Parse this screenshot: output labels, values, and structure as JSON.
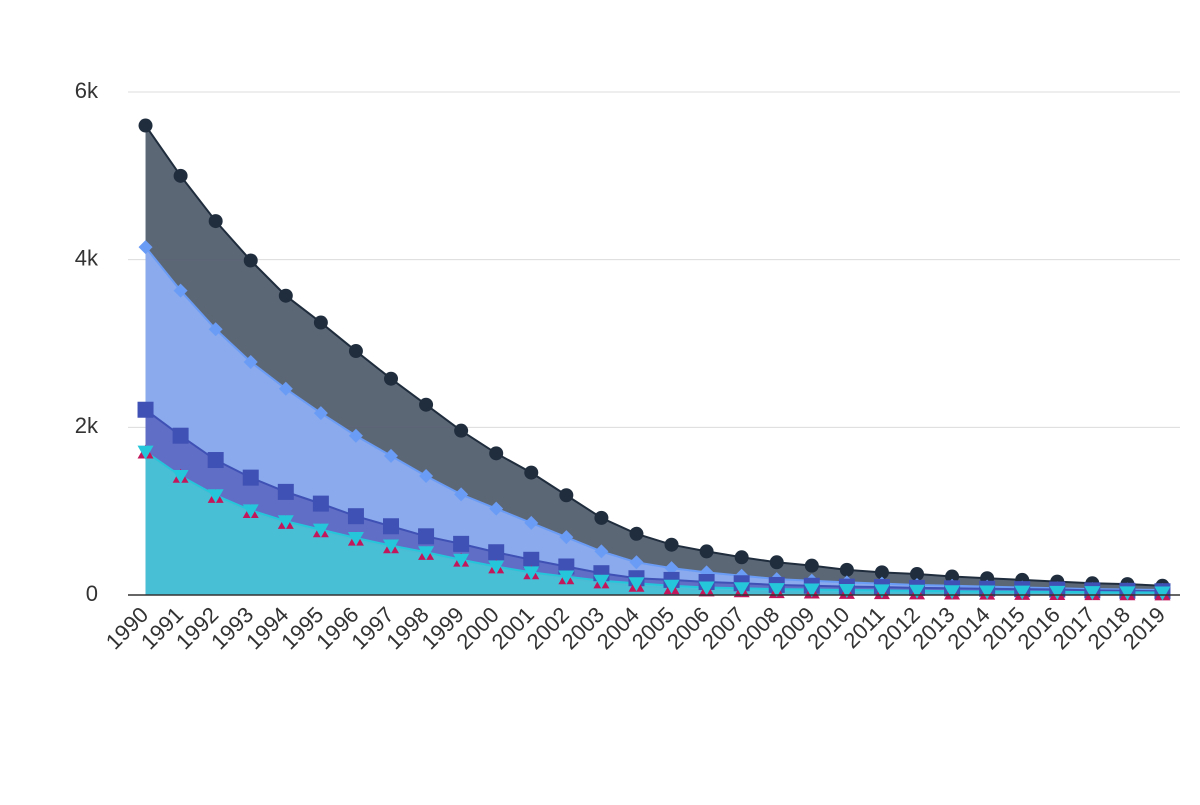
{
  "chart_data": {
    "type": "area",
    "categories": [
      "1990",
      "1991",
      "1992",
      "1993",
      "1994",
      "1995",
      "1996",
      "1997",
      "1998",
      "1999",
      "2000",
      "2001",
      "2002",
      "2003",
      "2004",
      "2005",
      "2006",
      "2007",
      "2008",
      "2009",
      "2010",
      "2011",
      "2012",
      "2013",
      "2014",
      "2015",
      "2016",
      "2017",
      "2018",
      "2019"
    ],
    "ylim": [
      0,
      6000
    ],
    "yticks": [
      0,
      {
        "value": 2000,
        "label": "2k"
      },
      {
        "value": 4000,
        "label": "4k"
      },
      {
        "value": 6000,
        "label": "6k"
      }
    ],
    "grid": true,
    "series": [
      {
        "color": "#1f2d3d",
        "fill": "#4a5767",
        "marker": "circle",
        "values": [
          5600,
          5000,
          4460,
          3990,
          3570,
          3250,
          2910,
          2580,
          2270,
          1960,
          1690,
          1460,
          1190,
          920,
          730,
          600,
          520,
          450,
          390,
          350,
          300,
          270,
          250,
          220,
          200,
          180,
          160,
          140,
          130,
          110
        ]
      },
      {
        "color": "#6b9cf5",
        "fill": "#8fb1fb",
        "marker": "diamond",
        "values": [
          4150,
          3630,
          3170,
          2780,
          2460,
          2170,
          1900,
          1660,
          1420,
          1200,
          1030,
          860,
          690,
          520,
          390,
          320,
          270,
          230,
          190,
          170,
          150,
          135,
          120,
          110,
          100,
          90,
          80,
          70,
          65,
          60
        ]
      },
      {
        "color": "#3f51b5",
        "fill": "#5c67c0",
        "marker": "square",
        "values": [
          2210,
          1900,
          1610,
          1400,
          1230,
          1090,
          940,
          820,
          700,
          610,
          510,
          420,
          340,
          260,
          200,
          180,
          155,
          140,
          120,
          110,
          100,
          95,
          85,
          80,
          75,
          70,
          65,
          55,
          50,
          45
        ]
      },
      {
        "color": "#c2185b",
        "fill": "#b03a74",
        "marker": "triangle",
        "values": [
          1700,
          1410,
          1170,
          990,
          860,
          760,
          660,
          570,
          490,
          410,
          330,
          260,
          200,
          150,
          110,
          80,
          55,
          45,
          35,
          30,
          25,
          22,
          20,
          18,
          16,
          14,
          12,
          10,
          9,
          8
        ]
      },
      {
        "color": "#26c6da",
        "fill": "#3ecde0",
        "marker": "triangle-down",
        "values": [
          1710,
          1420,
          1190,
          1010,
          880,
          780,
          680,
          590,
          510,
          420,
          340,
          270,
          220,
          170,
          140,
          110,
          90,
          80,
          70,
          65,
          60,
          55,
          50,
          45,
          42,
          40,
          38,
          35,
          32,
          30
        ]
      }
    ]
  }
}
